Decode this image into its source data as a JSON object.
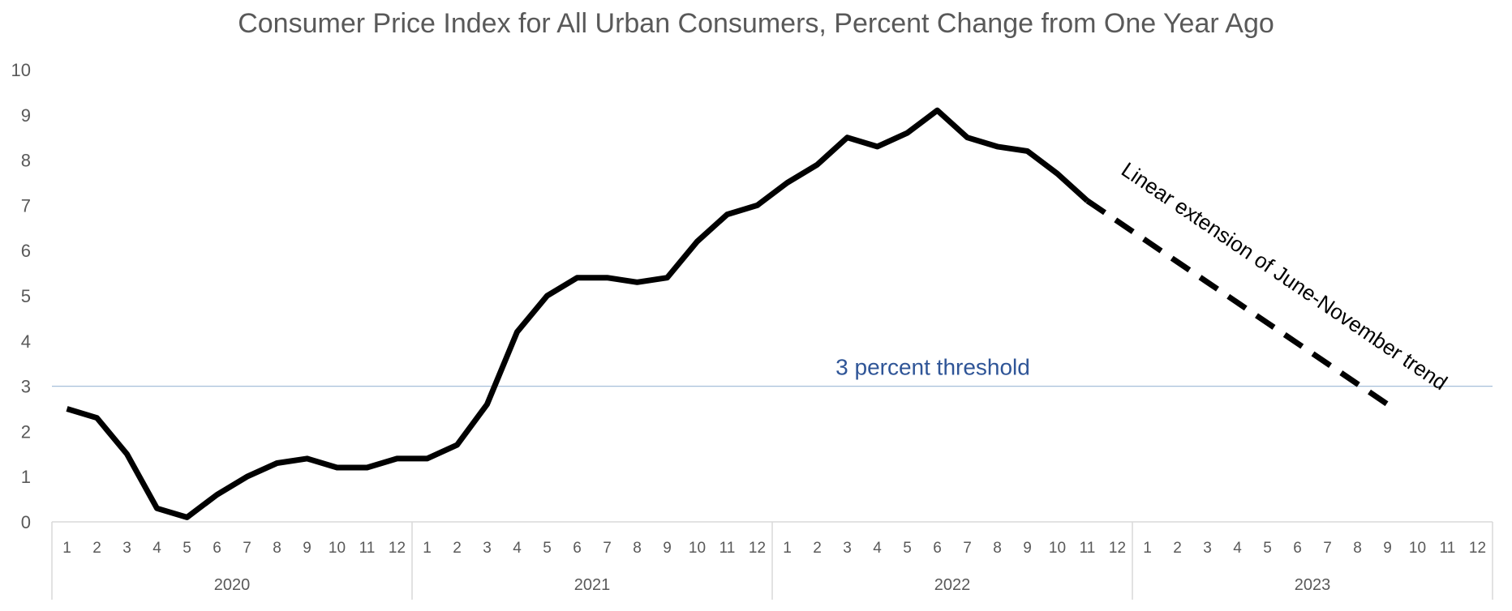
{
  "chart_data": {
    "type": "line",
    "title": "Consumer Price Index for All Urban Consumers, Percent Change from One Year Ago",
    "xlabel": "",
    "ylabel": "",
    "ylim": [
      0,
      10
    ],
    "yticks": [
      0,
      1,
      2,
      3,
      4,
      5,
      6,
      7,
      8,
      9,
      10
    ],
    "grid": false,
    "years": [
      {
        "label": "2020",
        "months": [
          "1",
          "2",
          "3",
          "4",
          "5",
          "6",
          "7",
          "8",
          "9",
          "10",
          "11",
          "12"
        ]
      },
      {
        "label": "2021",
        "months": [
          "1",
          "2",
          "3",
          "4",
          "5",
          "6",
          "7",
          "8",
          "9",
          "10",
          "11",
          "12"
        ]
      },
      {
        "label": "2022",
        "months": [
          "1",
          "2",
          "3",
          "4",
          "5",
          "6",
          "7",
          "8",
          "9",
          "10",
          "11",
          "12"
        ]
      },
      {
        "label": "2023",
        "months": [
          "1",
          "2",
          "3",
          "4",
          "5",
          "6",
          "7",
          "8",
          "9",
          "10",
          "11",
          "12"
        ]
      }
    ],
    "series": [
      {
        "style": "solid",
        "color": "#000000",
        "start_index": 0,
        "values": [
          2.5,
          2.3,
          1.5,
          0.3,
          0.1,
          0.6,
          1.0,
          1.3,
          1.4,
          1.2,
          1.2,
          1.4,
          1.4,
          1.7,
          2.6,
          4.2,
          5.0,
          5.4,
          5.4,
          5.3,
          5.4,
          6.2,
          6.8,
          7.0,
          7.5,
          7.9,
          8.5,
          8.3,
          8.6,
          9.1,
          8.5,
          8.3,
          8.2,
          7.7,
          7.1
        ]
      },
      {
        "style": "dashed",
        "color": "#000000",
        "start_index": 34,
        "values": [
          7.1,
          6.65,
          6.2,
          5.75,
          5.3,
          4.85,
          4.4,
          3.95,
          3.5,
          3.05,
          2.6
        ]
      }
    ],
    "threshold": {
      "value": 3,
      "label": "3 percent threshold",
      "color": "#a6bfd9",
      "label_color": "#2f5597"
    },
    "annotations": [
      {
        "text": "Linear extension of June-November trend"
      }
    ]
  }
}
